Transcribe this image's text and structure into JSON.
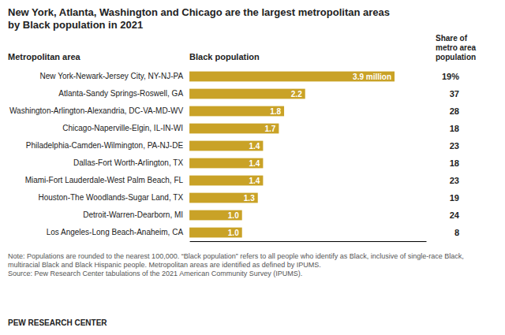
{
  "chart_data": {
    "type": "bar",
    "orientation": "horizontal",
    "title": "New York, Atlanta, Washington and Chicago are the largest metropolitan areas\nby Black population in 2021",
    "ylabel": "Metropolitan area",
    "xlabel": "Black population",
    "categories": [
      "New York-Newark-Jersey City, NY-NJ-PA",
      "Atlanta-Sandy Springs-Roswell, GA",
      "Washington-Arlington-Alexandria, DC-VA-MD-WV",
      "Chicago-Naperville-Elgin, IL-IN-WI",
      "Philadelphia-Camden-Wilmington, PA-NJ-DE",
      "Dallas-Fort Worth-Arlington, TX",
      "Miami-Fort Lauderdale-West Palm Beach, FL",
      "Houston-The Woodlands-Sugar Land, TX",
      "Detroit-Warren-Dearborn, MI",
      "Los Angeles-Long Beach-Anaheim, CA"
    ],
    "values": [
      3.9,
      2.2,
      1.8,
      1.7,
      1.4,
      1.4,
      1.4,
      1.3,
      1.0,
      1.0
    ],
    "value_labels": [
      "3.9 million",
      "2.2",
      "1.8",
      "1.7",
      "1.4",
      "1.4",
      "1.4",
      "1.3",
      "1.0",
      "1.0"
    ],
    "data_labels": true,
    "color": "#C9A227",
    "xlim": [
      0,
      4.5
    ],
    "tick_labels": false,
    "share": {
      "title": "Share of\nmetro area\npopulation",
      "values": [
        19,
        37,
        28,
        18,
        23,
        18,
        23,
        19,
        24,
        8
      ],
      "value_labels": [
        "19%",
        "37",
        "28",
        "18",
        "23",
        "18",
        "23",
        "19",
        "24",
        "8"
      ]
    },
    "note": "Note: Populations are rounded to the nearest 100,000. “Black population” refers to all people who identify as Black, inclusive of single-race Black, multiracial Black and Black Hispanic people. Metropolitan areas are identified as defined by IPUMS.\nSource: Pew Research Center tabulations of the 2021 American Community Survey (IPUMS).",
    "source": "PEW RESEARCH CENTER"
  }
}
